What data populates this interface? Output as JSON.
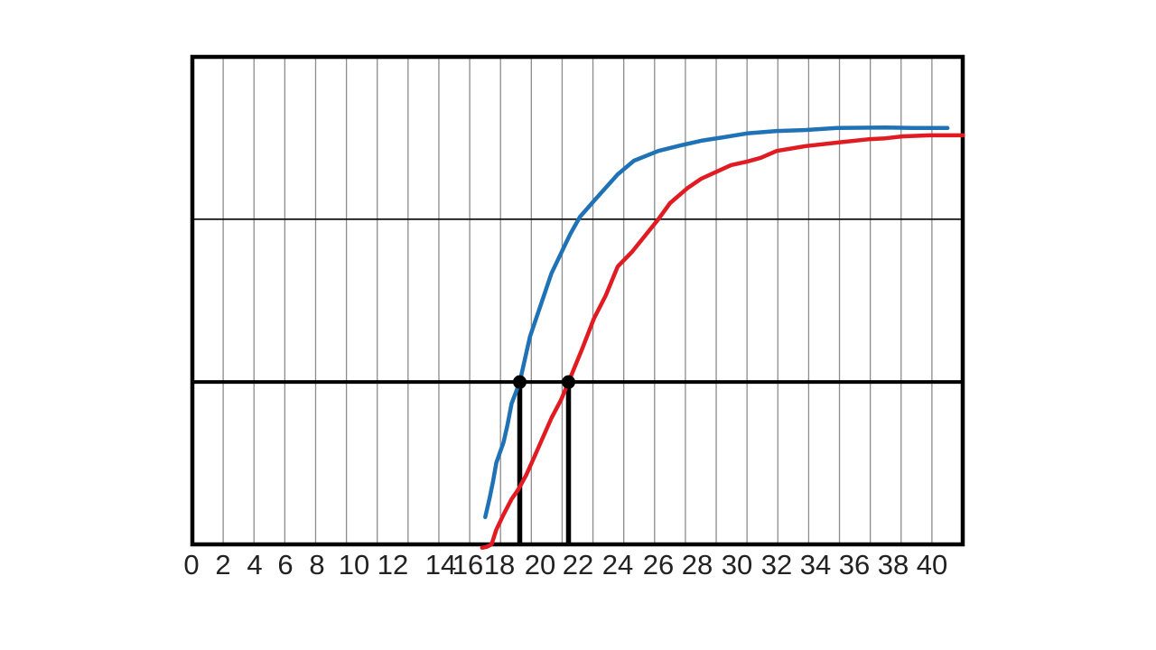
{
  "page": {
    "background_color": "#ffffff"
  },
  "chart_data": {
    "type": "line",
    "title": "",
    "description": "Two S-shaped amplification curves (blue and red) crossing a bold horizontal threshold line; the crossing points are marked with black dots and vertical drop lines down to the x-axis",
    "x_axis": {
      "min": 0,
      "max": 41.6,
      "tick_step": 2,
      "tick_labels": [
        "0",
        "2",
        "4",
        "6",
        "8",
        "10",
        "12",
        "14",
        "16",
        "18",
        "20",
        "22",
        "24",
        "26",
        "28",
        "30",
        "32",
        "34",
        "36",
        "38",
        "40"
      ]
    },
    "y_axis": {
      "min": 0,
      "max": 1,
      "tick_labels": []
    },
    "grid": {
      "vertical_divisions": 25,
      "vertical_color": "#8c8c8c",
      "horizontal_lines": [
        {
          "y": 0.667,
          "style": "thin",
          "color": "#000000"
        }
      ]
    },
    "threshold_line": {
      "y": 0.333,
      "color": "#000000",
      "style": "thick"
    },
    "axis_color": "#000000",
    "tick_label_color": "#222222",
    "marker_color": "#000000",
    "series": [
      {
        "name": "blue-curve",
        "color": "#1f72b6",
        "points": [
          [
            17.1,
            0.056
          ],
          [
            17.4,
            0.098
          ],
          [
            17.6,
            0.13
          ],
          [
            17.8,
            0.167
          ],
          [
            18.2,
            0.209
          ],
          [
            18.4,
            0.246
          ],
          [
            18.6,
            0.289
          ],
          [
            19.0,
            0.333
          ],
          [
            19.5,
            0.426
          ],
          [
            20.0,
            0.487
          ],
          [
            20.6,
            0.556
          ],
          [
            21.3,
            0.613
          ],
          [
            21.6,
            0.637
          ],
          [
            22.1,
            0.672
          ],
          [
            22.9,
            0.709
          ],
          [
            24.0,
            0.759
          ],
          [
            24.8,
            0.787
          ],
          [
            26.0,
            0.807
          ],
          [
            27.1,
            0.818
          ],
          [
            28.2,
            0.828
          ],
          [
            29.3,
            0.835
          ],
          [
            30.5,
            0.843
          ],
          [
            32.0,
            0.848
          ],
          [
            33.5,
            0.85
          ],
          [
            35.1,
            0.854
          ],
          [
            37.6,
            0.855
          ],
          [
            39.0,
            0.854
          ],
          [
            40.8,
            0.854
          ]
        ]
      },
      {
        "name": "red-curve",
        "color": "#e01b22",
        "points": [
          [
            16.9,
            -0.007
          ],
          [
            17.2,
            -0.005
          ],
          [
            17.5,
            0.0
          ],
          [
            17.8,
            0.03
          ],
          [
            18.2,
            0.061
          ],
          [
            18.6,
            0.093
          ],
          [
            18.9,
            0.111
          ],
          [
            19.3,
            0.141
          ],
          [
            19.7,
            0.178
          ],
          [
            20.1,
            0.215
          ],
          [
            20.6,
            0.259
          ],
          [
            21.1,
            0.296
          ],
          [
            21.5,
            0.333
          ],
          [
            22.2,
            0.4
          ],
          [
            22.8,
            0.463
          ],
          [
            23.4,
            0.511
          ],
          [
            24.0,
            0.57
          ],
          [
            24.7,
            0.6
          ],
          [
            26.0,
            0.667
          ],
          [
            26.6,
            0.7
          ],
          [
            27.5,
            0.731
          ],
          [
            28.2,
            0.75
          ],
          [
            29.0,
            0.765
          ],
          [
            29.7,
            0.778
          ],
          [
            30.5,
            0.785
          ],
          [
            31.2,
            0.793
          ],
          [
            32.0,
            0.807
          ],
          [
            33.5,
            0.817
          ],
          [
            35.1,
            0.824
          ],
          [
            36.7,
            0.831
          ],
          [
            37.6,
            0.833
          ],
          [
            38.5,
            0.837
          ],
          [
            39.9,
            0.839
          ],
          [
            41.6,
            0.839
          ]
        ]
      }
    ],
    "ct_markers": [
      {
        "series": "blue-curve",
        "x": 19.0,
        "y": 0.333
      },
      {
        "series": "red-curve",
        "x": 21.5,
        "y": 0.333
      }
    ]
  }
}
